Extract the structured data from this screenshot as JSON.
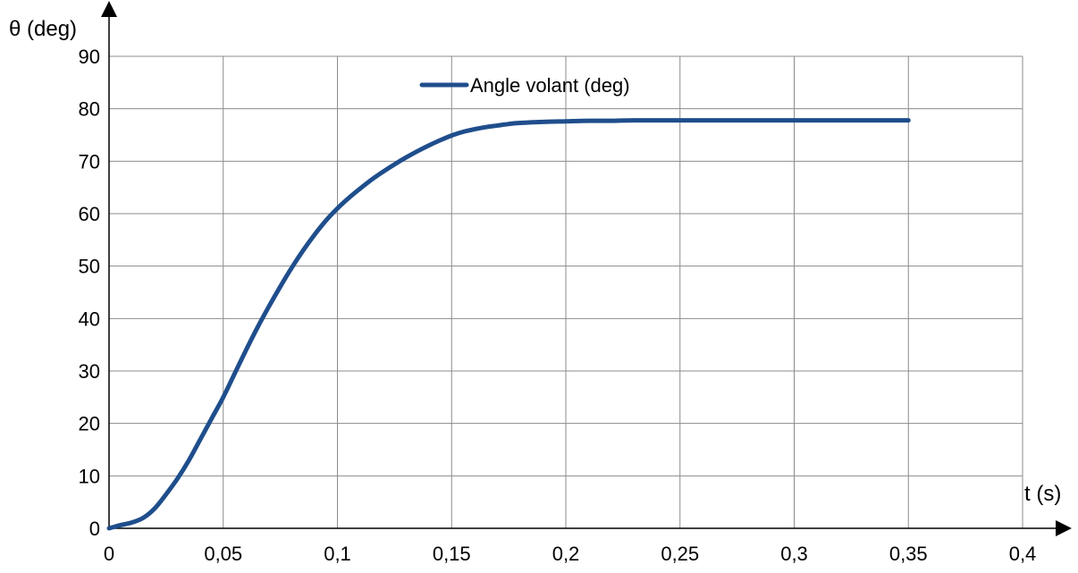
{
  "chart_data": {
    "type": "line",
    "title": "",
    "xlabel": "t (s)",
    "ylabel": "θ (deg)",
    "xlim": [
      0,
      0.4
    ],
    "ylim": [
      0,
      90
    ],
    "x_ticks": [
      0,
      0.05,
      0.1,
      0.15,
      0.2,
      0.25,
      0.3,
      0.35,
      0.4
    ],
    "x_tick_labels": [
      "0",
      "0,05",
      "0,1",
      "0,15",
      "0,2",
      "0,25",
      "0,3",
      "0,35",
      "0,4"
    ],
    "y_ticks": [
      0,
      10,
      20,
      30,
      40,
      50,
      60,
      70,
      80,
      90
    ],
    "y_tick_labels": [
      "0",
      "10",
      "20",
      "30",
      "40",
      "50",
      "60",
      "70",
      "80",
      "90"
    ],
    "grid": true,
    "legend_position": "top-center",
    "series": [
      {
        "name": "Angle volant (deg)",
        "color": "#1f4e8c",
        "x": [
          0,
          0.005,
          0.01,
          0.015,
          0.02,
          0.025,
          0.03,
          0.035,
          0.04,
          0.045,
          0.05,
          0.055,
          0.06,
          0.065,
          0.07,
          0.075,
          0.08,
          0.085,
          0.09,
          0.095,
          0.1,
          0.105,
          0.11,
          0.115,
          0.12,
          0.125,
          0.13,
          0.135,
          0.14,
          0.145,
          0.15,
          0.155,
          0.16,
          0.165,
          0.17,
          0.175,
          0.18,
          0.19,
          0.2,
          0.21,
          0.22,
          0.23,
          0.25,
          0.275,
          0.3,
          0.325,
          0.35
        ],
        "values": [
          0,
          0.6,
          1.1,
          2.0,
          3.8,
          6.5,
          9.5,
          13.0,
          17.0,
          21.0,
          25.0,
          29.5,
          34.0,
          38.3,
          42.3,
          46.1,
          49.7,
          53.0,
          56.0,
          58.7,
          61.0,
          63.0,
          64.8,
          66.5,
          68.0,
          69.4,
          70.7,
          71.9,
          73.0,
          74.0,
          74.9,
          75.6,
          76.1,
          76.5,
          76.8,
          77.1,
          77.3,
          77.5,
          77.6,
          77.7,
          77.7,
          77.8,
          77.8,
          77.8,
          77.8,
          77.8,
          77.8
        ]
      }
    ]
  }
}
